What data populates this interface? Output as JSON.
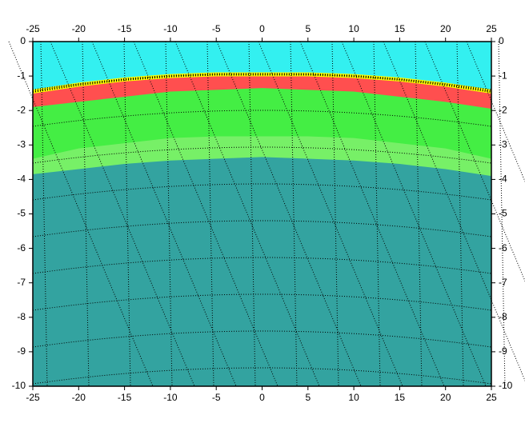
{
  "chart_data": {
    "type": "layered-area",
    "x": [
      -25,
      -20,
      -15,
      -10,
      -5,
      0,
      5,
      10,
      15,
      20,
      25
    ],
    "series": [
      {
        "color": "#33f0f0",
        "outline": "#ffff00",
        "values": [
          -1.45,
          -1.25,
          -1.1,
          -1.0,
          -0.95,
          -0.95,
          -0.95,
          -1.0,
          -1.1,
          -1.25,
          -1.45
        ]
      },
      {
        "color": "#ff4f4f",
        "values": [
          -1.9,
          -1.75,
          -1.6,
          -1.45,
          -1.4,
          -1.35,
          -1.4,
          -1.45,
          -1.6,
          -1.75,
          -1.95
        ]
      },
      {
        "color": "#44ee44",
        "values": [
          -3.4,
          -3.1,
          -2.95,
          -2.8,
          -2.75,
          -2.75,
          -2.75,
          -2.8,
          -2.95,
          -3.1,
          -3.4
        ]
      },
      {
        "color": "#77f067",
        "values": [
          -3.85,
          -3.7,
          -3.55,
          -3.45,
          -3.4,
          -3.35,
          -3.4,
          -3.45,
          -3.55,
          -3.7,
          -3.9
        ]
      },
      {
        "color": "#33a3a0",
        "values": [
          -10,
          -10,
          -10,
          -10,
          -10,
          -10,
          -10,
          -10,
          -10,
          -10,
          -10
        ]
      }
    ],
    "xlim": [
      -25,
      25
    ],
    "ylim": [
      -10,
      0
    ],
    "xticks": [
      -25,
      -20,
      -15,
      -10,
      -5,
      0,
      5,
      10,
      15,
      20,
      25
    ],
    "yticks": [
      0,
      -1,
      -2,
      -3,
      -4,
      -5,
      -6,
      -7,
      -8,
      -9,
      -10
    ]
  }
}
